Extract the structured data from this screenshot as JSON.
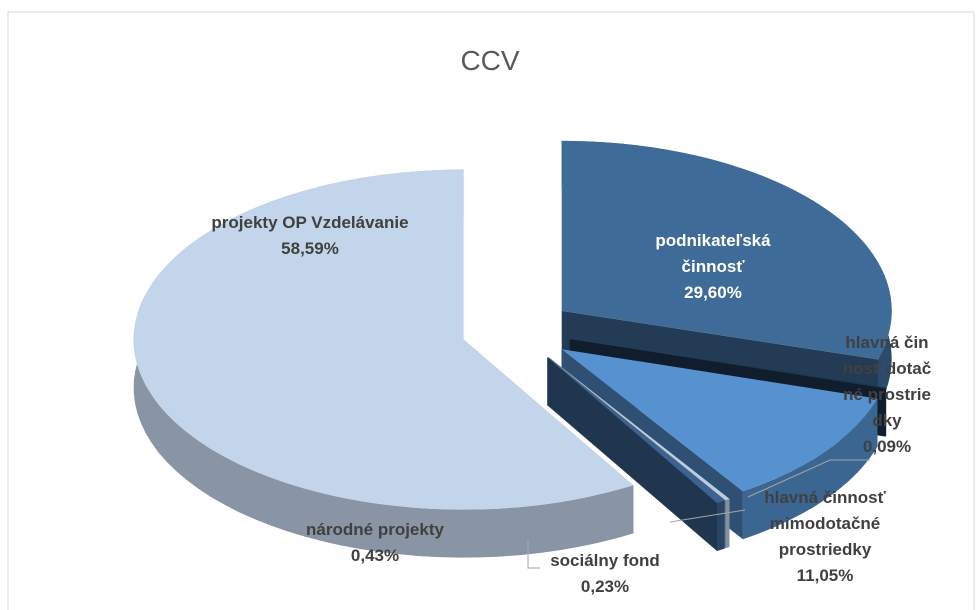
{
  "chart_data": {
    "type": "pie",
    "title": "CCV",
    "categories": [
      "podnikateľská činnosť",
      "hlavná činnosť dotačné prostriedky",
      "hlavná činnosť mimodotačné prostriedky",
      "sociálny fond",
      "národné projekty",
      "projekty OP Vzdelávanie"
    ],
    "values": [
      29.6,
      0.09,
      11.05,
      0.23,
      0.43,
      58.59
    ],
    "value_labels": [
      "29,60%",
      "0,09%",
      "11,05%",
      "0,23%",
      "0,43%",
      "58,59%"
    ],
    "colors": [
      "#3f6b99",
      "#1c3450",
      "#5592cf",
      "#b9cde6",
      "#3b6290",
      "#c3d5ea"
    ]
  }
}
